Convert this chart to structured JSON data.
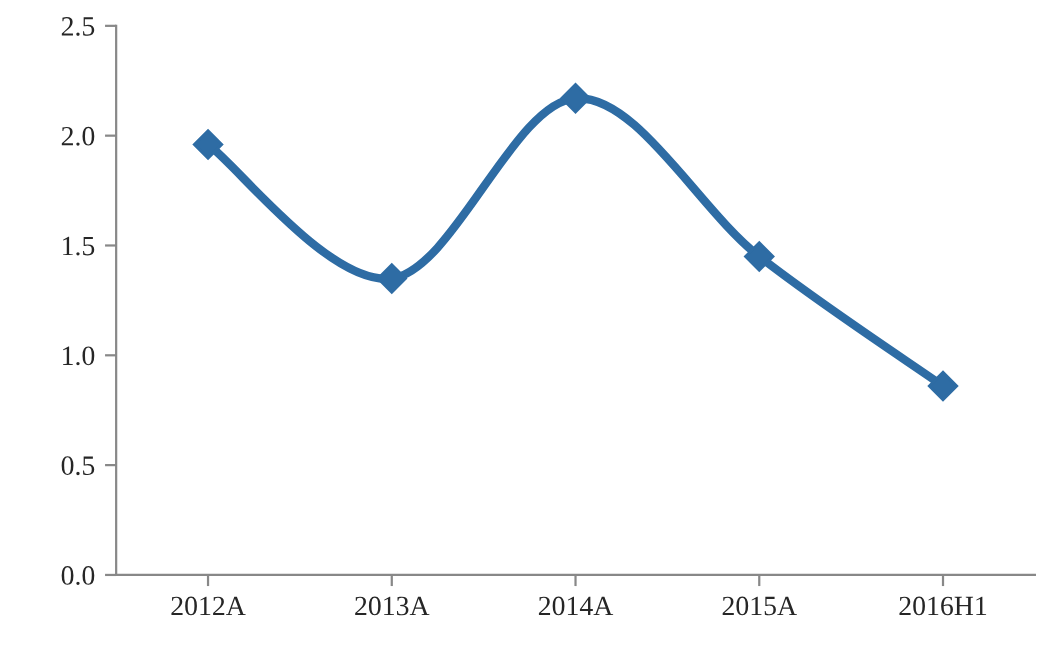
{
  "chart_data": {
    "type": "line",
    "categories": [
      "2012A",
      "2013A",
      "2014A",
      "2015A",
      "2016H1"
    ],
    "series": [
      {
        "color": "#2e6ca4",
        "values": [
          1.96,
          1.35,
          2.17,
          1.45,
          0.86
        ]
      }
    ],
    "ylim": [
      0,
      2.5
    ],
    "yticks": [
      {
        "value": 0,
        "label": "0.0"
      },
      {
        "value": 0.5,
        "label": "0.5"
      },
      {
        "value": 1,
        "label": "1.0"
      },
      {
        "value": 1.5,
        "label": "1.5"
      },
      {
        "value": 2,
        "label": "2.0"
      },
      {
        "value": 2.5,
        "label": "2.5"
      }
    ],
    "marker": "diamond",
    "line_style": "solid",
    "grid": false,
    "legend": false
  }
}
